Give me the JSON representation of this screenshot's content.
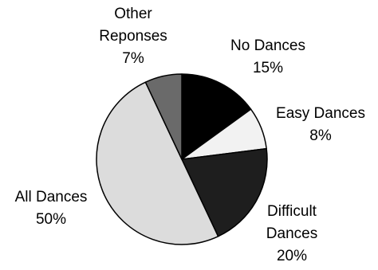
{
  "chart_data": {
    "type": "pie",
    "title": "",
    "slices": [
      {
        "key": "no",
        "label_lines": [
          "No Dances"
        ],
        "percent_label": "15%",
        "value": 15,
        "color": "#000000"
      },
      {
        "key": "easy",
        "label_lines": [
          "Easy Dances"
        ],
        "percent_label": "8%",
        "value": 8,
        "color": "#f2f2f2"
      },
      {
        "key": "difficult",
        "label_lines": [
          "Difficult",
          "Dances"
        ],
        "percent_label": "20%",
        "value": 20,
        "color": "#1e1e1e"
      },
      {
        "key": "all",
        "label_lines": [
          "All Dances"
        ],
        "percent_label": "50%",
        "value": 50,
        "color": "#dcdcdc"
      },
      {
        "key": "other",
        "label_lines": [
          "Other",
          "Reponses"
        ],
        "percent_label": "7%",
        "value": 7,
        "color": "#6a6a6a"
      }
    ],
    "start_angle": "12 o'clock",
    "direction": "clockwise",
    "outline_color": "#000000",
    "legend": "none"
  }
}
